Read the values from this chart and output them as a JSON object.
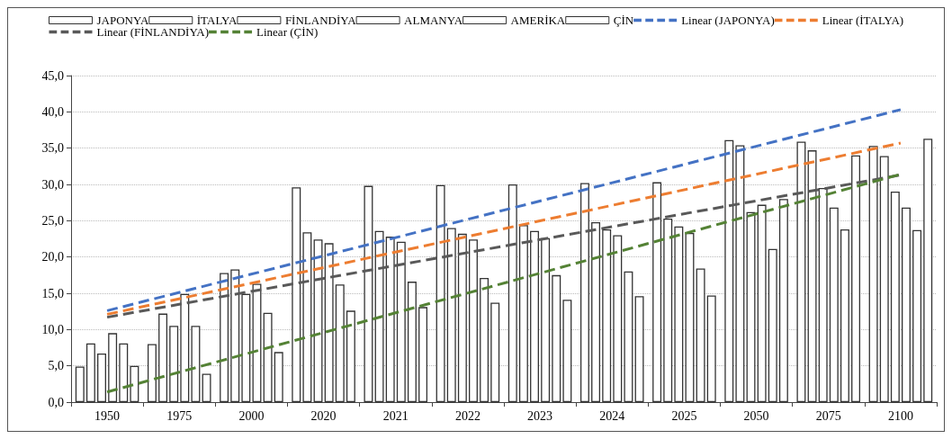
{
  "chart_data": {
    "type": "bar",
    "categories": [
      "1950",
      "1975",
      "2000",
      "2020",
      "2021",
      "2022",
      "2023",
      "2024",
      "2025",
      "2050",
      "2075",
      "2100"
    ],
    "series": [
      {
        "name": "JAPONYA",
        "color": "#ffffff",
        "values": [
          4.9,
          8.0,
          17.8,
          29.6,
          29.8,
          29.9,
          30.0,
          30.2,
          30.3,
          36.1,
          35.9,
          35.3
        ]
      },
      {
        "name": "İTALYA",
        "color": "#ffffff",
        "values": [
          8.1,
          12.2,
          18.3,
          23.4,
          23.6,
          24.0,
          24.4,
          24.8,
          25.3,
          35.4,
          34.7,
          33.9
        ]
      },
      {
        "name": "FİNLANDİYA",
        "color": "#ffffff",
        "values": [
          6.7,
          10.5,
          14.9,
          22.4,
          22.8,
          23.2,
          23.6,
          23.8,
          24.2,
          26.2,
          29.5,
          29.0
        ]
      },
      {
        "name": "ALMANYA",
        "color": "#ffffff",
        "values": [
          9.5,
          14.9,
          16.3,
          21.9,
          22.1,
          22.4,
          22.6,
          23.0,
          23.3,
          27.2,
          26.8,
          26.8
        ]
      },
      {
        "name": "AMERİKA",
        "color": "#ffffff",
        "values": [
          8.1,
          10.5,
          12.3,
          16.2,
          16.6,
          17.1,
          17.5,
          18.0,
          18.4,
          21.1,
          23.8,
          23.7
        ]
      },
      {
        "name": "ÇİN",
        "color": "#ffffff",
        "values": [
          5.0,
          3.9,
          6.9,
          12.6,
          13.1,
          13.7,
          14.1,
          14.6,
          14.7,
          28.0,
          34.0,
          36.3
        ]
      },
      {
        "name": "Linear (JAPONYA)",
        "type": "line",
        "line_style": "dashed",
        "color": "#4472c4",
        "values": [
          12.6,
          null,
          null,
          null,
          null,
          null,
          null,
          null,
          null,
          null,
          null,
          40.3
        ]
      },
      {
        "name": "Linear (İTALYA)",
        "type": "line",
        "line_style": "dashed",
        "color": "#ed7d31",
        "values": [
          12.1,
          null,
          null,
          null,
          null,
          null,
          null,
          null,
          null,
          null,
          null,
          35.7
        ]
      },
      {
        "name": "Linear (FİNLANDİYA)",
        "type": "line",
        "line_style": "dashed",
        "color": "#595959",
        "values": [
          11.7,
          null,
          null,
          null,
          null,
          null,
          null,
          null,
          null,
          null,
          null,
          31.3
        ]
      },
      {
        "name": "Linear (ÇİN)",
        "type": "line",
        "line_style": "dashed",
        "color": "#548235",
        "values": [
          1.4,
          null,
          null,
          null,
          null,
          null,
          null,
          null,
          null,
          null,
          null,
          31.4
        ]
      }
    ],
    "ylim": [
      0,
      45
    ],
    "yticks": [
      {
        "value": 0,
        "label": "0,0"
      },
      {
        "value": 5,
        "label": "5,0"
      },
      {
        "value": 10,
        "label": "10,0"
      },
      {
        "value": 15,
        "label": "15,0"
      },
      {
        "value": 20,
        "label": "20,0"
      },
      {
        "value": 25,
        "label": "25,0"
      },
      {
        "value": 30,
        "label": "30,0"
      },
      {
        "value": 35,
        "label": "35,0"
      },
      {
        "value": 40,
        "label": "40,0"
      },
      {
        "value": 45,
        "label": "45,0"
      }
    ],
    "grid": "y",
    "legend": "top"
  }
}
